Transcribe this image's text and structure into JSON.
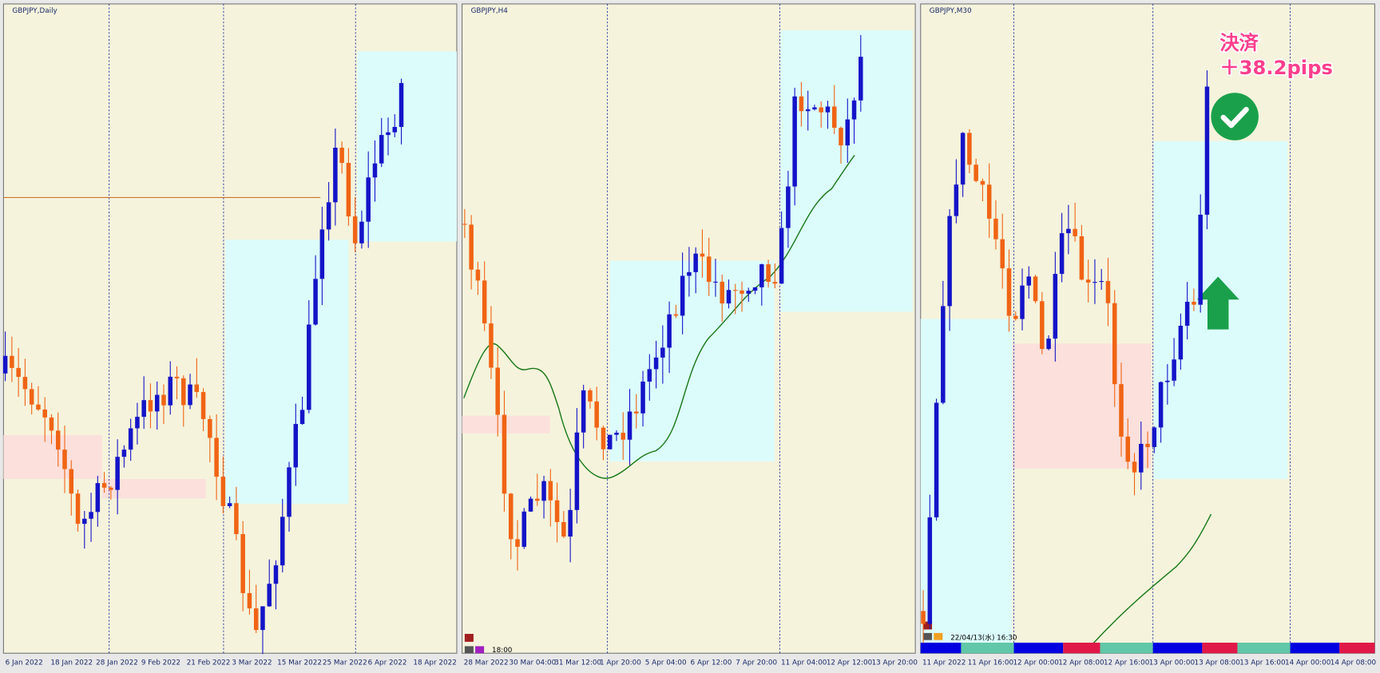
{
  "panels": [
    {
      "title": "GBPJPY,Daily",
      "x_labels": [
        "6 Jan 2022",
        "18 Jan 2022",
        "28 Jan 2022",
        "9 Feb 2022",
        "21 Feb 2022",
        "3 Mar 2022",
        "15 Mar 2022",
        "25 Mar 2022",
        "6 Apr 2022",
        "18 Apr 2022"
      ]
    },
    {
      "title": "GBPJPY,H4",
      "x_labels": [
        "28 Mar 2022",
        "30 Mar 04:00",
        "31 Mar 12:00",
        "1 Apr 20:00",
        "5 Apr 04:00",
        "6 Apr 12:00",
        "7 Apr 20:00",
        "11 Apr 04:00",
        "12 Apr 12:00",
        "13 Apr 20:00"
      ],
      "time_label": "18:00"
    },
    {
      "title": "GBPJPY,M30",
      "x_labels": [
        "11 Apr 2022",
        "11 Apr 16:00",
        "12 Apr 00:00",
        "12 Apr 08:00",
        "12 Apr 16:00",
        "13 Apr 00:00",
        "13 Apr 08:00",
        "13 Apr 16:00",
        "14 Apr 00:00",
        "14 Apr 08:00"
      ],
      "time_label": "22/04/13(水) 16:30"
    }
  ],
  "annotation": {
    "line1": "決済",
    "line2": "＋38.2pips"
  }
}
